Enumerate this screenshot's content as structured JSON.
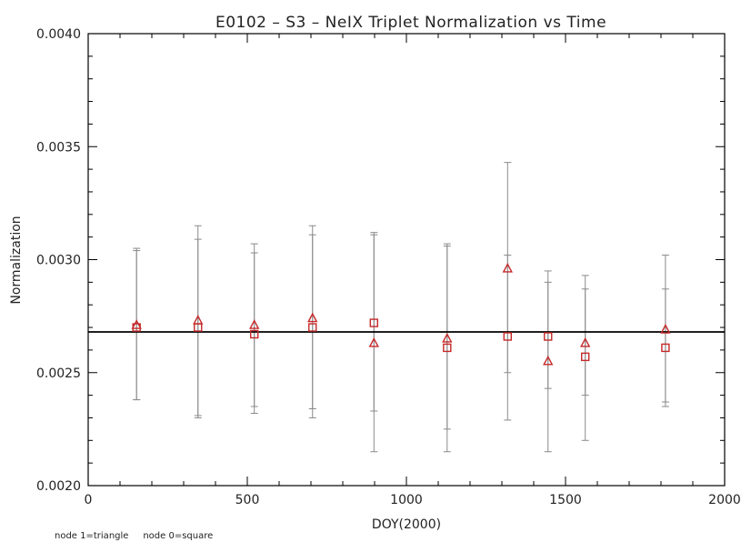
{
  "chart_data": {
    "type": "scatter",
    "title": "E0102 – S3 – NeIX Triplet Normalization vs Time",
    "xlabel": "DOY(2000)",
    "ylabel": "Normalization",
    "xlim": [
      0,
      2000
    ],
    "ylim": [
      0.002,
      0.004
    ],
    "x_ticks": [
      0,
      500,
      1000,
      1500,
      2000
    ],
    "x_tick_labels": [
      "0",
      "500",
      "1000",
      "1500",
      "2000"
    ],
    "y_ticks": [
      0.002,
      0.0025,
      0.003,
      0.0035,
      0.004
    ],
    "y_tick_labels": [
      "0.0020",
      "0.0025",
      "0.0030",
      "0.0035",
      "0.0040"
    ],
    "reference_line": 0.00268,
    "footnote": "node 1=triangle     node 0=square",
    "colors": {
      "marker": "#c62828",
      "errorbar": "#8a8a8a",
      "axis": "#000000"
    },
    "series": [
      {
        "marker": "triangle",
        "points": [
          {
            "x": 152,
            "y": 0.00271,
            "ylow": 0.00238,
            "yhigh": 0.00305
          },
          {
            "x": 345,
            "y": 0.00273,
            "ylow": 0.00231,
            "yhigh": 0.00315
          },
          {
            "x": 522,
            "y": 0.00271,
            "ylow": 0.00235,
            "yhigh": 0.00307
          },
          {
            "x": 705,
            "y": 0.00274,
            "ylow": 0.00234,
            "yhigh": 0.00315
          },
          {
            "x": 898,
            "y": 0.00263,
            "ylow": 0.00215,
            "yhigh": 0.00312
          },
          {
            "x": 1128,
            "y": 0.00265,
            "ylow": 0.00225,
            "yhigh": 0.00307
          },
          {
            "x": 1318,
            "y": 0.00296,
            "ylow": 0.0025,
            "yhigh": 0.00343
          },
          {
            "x": 1445,
            "y": 0.00255,
            "ylow": 0.00215,
            "yhigh": 0.00295
          },
          {
            "x": 1562,
            "y": 0.00263,
            "ylow": 0.0024,
            "yhigh": 0.00293
          },
          {
            "x": 1814,
            "y": 0.00269,
            "ylow": 0.00237,
            "yhigh": 0.00302
          }
        ]
      },
      {
        "marker": "square",
        "points": [
          {
            "x": 152,
            "y": 0.0027,
            "ylow": 0.00238,
            "yhigh": 0.00304
          },
          {
            "x": 345,
            "y": 0.0027,
            "ylow": 0.0023,
            "yhigh": 0.00309
          },
          {
            "x": 522,
            "y": 0.00267,
            "ylow": 0.00232,
            "yhigh": 0.00303
          },
          {
            "x": 705,
            "y": 0.0027,
            "ylow": 0.0023,
            "yhigh": 0.00311
          },
          {
            "x": 898,
            "y": 0.00272,
            "ylow": 0.00233,
            "yhigh": 0.00311
          },
          {
            "x": 1128,
            "y": 0.00261,
            "ylow": 0.00215,
            "yhigh": 0.00306
          },
          {
            "x": 1318,
            "y": 0.00266,
            "ylow": 0.00229,
            "yhigh": 0.00302
          },
          {
            "x": 1445,
            "y": 0.00266,
            "ylow": 0.00243,
            "yhigh": 0.0029
          },
          {
            "x": 1562,
            "y": 0.00257,
            "ylow": 0.0022,
            "yhigh": 0.00287
          },
          {
            "x": 1814,
            "y": 0.00261,
            "ylow": 0.00235,
            "yhigh": 0.00287
          }
        ]
      }
    ]
  }
}
